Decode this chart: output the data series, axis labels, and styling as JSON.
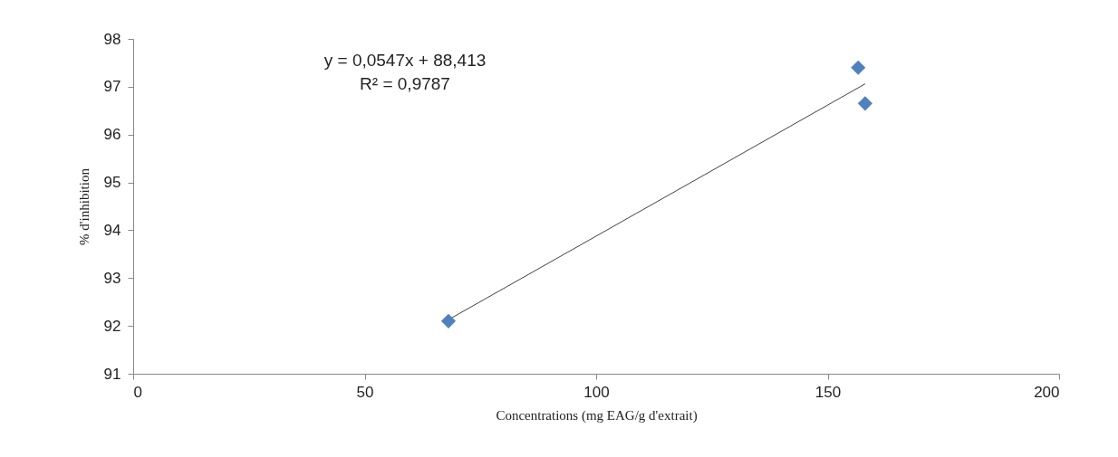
{
  "chart_data": {
    "type": "scatter",
    "xlabel": "Concentrations (mg EAG/g d'extrait)",
    "ylabel": "% d'inhibition",
    "xlim": [
      0,
      200
    ],
    "xticks": [
      0,
      50,
      100,
      150,
      200
    ],
    "ylim": [
      91,
      98
    ],
    "yticks": [
      91,
      92,
      93,
      94,
      95,
      96,
      97,
      98
    ],
    "grid": false,
    "annotations": [
      "y = 0,0547x + 88,413",
      "R² = 0,9787"
    ],
    "series": [
      {
        "marker": "diamond",
        "color": "#4f81bd",
        "x": [
          68.1,
          156.6,
          158.1
        ],
        "values": [
          92.1,
          97.4,
          96.65
        ]
      },
      {
        "type": "line",
        "color": "#404040",
        "line_style": "solid",
        "x": [
          68.1,
          158.1
        ],
        "values": [
          92.13,
          97.06
        ]
      }
    ]
  }
}
